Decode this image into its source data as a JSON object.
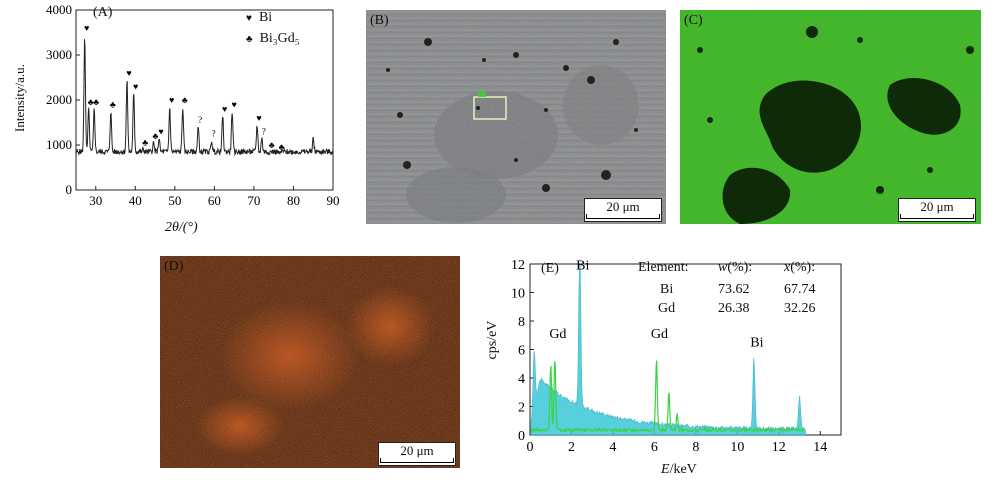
{
  "panel_a": {
    "label": "(A)",
    "ylabel": "Intensity/a.u.",
    "xlabel": "2θ/(°)",
    "legend": [
      {
        "symbol": "♥",
        "text": "Bi"
      },
      {
        "symbol": "♣",
        "text": "Bi₃Gd₅"
      }
    ],
    "chart_data": {
      "type": "line",
      "xlim": [
        25,
        90
      ],
      "ylim": [
        0,
        4000
      ],
      "xticks": [
        30,
        40,
        50,
        60,
        70,
        80,
        90
      ],
      "yticks": [
        0,
        1000,
        2000,
        3000,
        4000
      ],
      "peaks": [
        {
          "x": 27.2,
          "y": 3450,
          "mark": "♥"
        },
        {
          "x": 28.2,
          "y": 1800,
          "mark": "♣"
        },
        {
          "x": 29.6,
          "y": 1800,
          "mark": "♣"
        },
        {
          "x": 33.8,
          "y": 1750,
          "mark": "♣"
        },
        {
          "x": 37.9,
          "y": 2450,
          "mark": "♥"
        },
        {
          "x": 39.6,
          "y": 2150,
          "mark": "♥"
        },
        {
          "x": 42.0,
          "y": 900,
          "mark": "♣"
        },
        {
          "x": 44.6,
          "y": 1050,
          "mark": "♣"
        },
        {
          "x": 46.0,
          "y": 1150,
          "mark": "♥"
        },
        {
          "x": 48.7,
          "y": 1850,
          "mark": "♥"
        },
        {
          "x": 52.0,
          "y": 1850,
          "mark": "♣"
        },
        {
          "x": 55.9,
          "y": 1400,
          "mark": "?"
        },
        {
          "x": 59.3,
          "y": 1100,
          "mark": "?"
        },
        {
          "x": 62.1,
          "y": 1650,
          "mark": "♥"
        },
        {
          "x": 64.5,
          "y": 1750,
          "mark": "♥"
        },
        {
          "x": 70.8,
          "y": 1450,
          "mark": "♥"
        },
        {
          "x": 72.0,
          "y": 1150,
          "mark": "?"
        },
        {
          "x": 74.0,
          "y": 850,
          "mark": "♣"
        },
        {
          "x": 76.5,
          "y": 800,
          "mark": "♣"
        },
        {
          "x": 85.0,
          "y": 1150,
          "mark": null
        }
      ],
      "baseline": 850
    }
  },
  "panel_b": {
    "label": "(B)",
    "scale": "20 μm"
  },
  "panel_c": {
    "label": "(C)",
    "scale": "20 μm"
  },
  "panel_d": {
    "label": "(D)",
    "scale": "20 μm"
  },
  "panel_e": {
    "label": "(E)",
    "ylabel": "cps/eV",
    "xlabel": "E/keV",
    "peak_labels": [
      {
        "x": 1.2,
        "text": "Gd"
      },
      {
        "x": 2.4,
        "text": "Bi"
      },
      {
        "x": 6.1,
        "text": "Gd"
      },
      {
        "x": 10.8,
        "text": "Bi"
      }
    ],
    "table": {
      "headers": [
        "Element:",
        "w(%):",
        "x(%):"
      ],
      "rows": [
        [
          "Bi",
          "73.62",
          "67.74"
        ],
        [
          "Gd",
          "26.38",
          "32.26"
        ]
      ]
    },
    "chart_data": {
      "type": "area",
      "xlim": [
        0,
        15
      ],
      "ylim": [
        0,
        12
      ],
      "xticks": [
        0,
        2,
        4,
        6,
        8,
        10,
        12,
        14
      ],
      "yticks": [
        0,
        2,
        4,
        6,
        8,
        10,
        12
      ],
      "cyan_peaks": [
        {
          "x": 0.2,
          "y": 4
        },
        {
          "x": 2.4,
          "y": 11.3
        },
        {
          "x": 10.8,
          "y": 4.9
        },
        {
          "x": 13.0,
          "y": 2.3
        }
      ],
      "green_peaks": [
        {
          "x": 1.0,
          "y": 4.6
        },
        {
          "x": 1.2,
          "y": 5.0
        },
        {
          "x": 6.1,
          "y": 5.0
        },
        {
          "x": 6.7,
          "y": 2.6
        },
        {
          "x": 7.1,
          "y": 1.1
        }
      ]
    }
  }
}
